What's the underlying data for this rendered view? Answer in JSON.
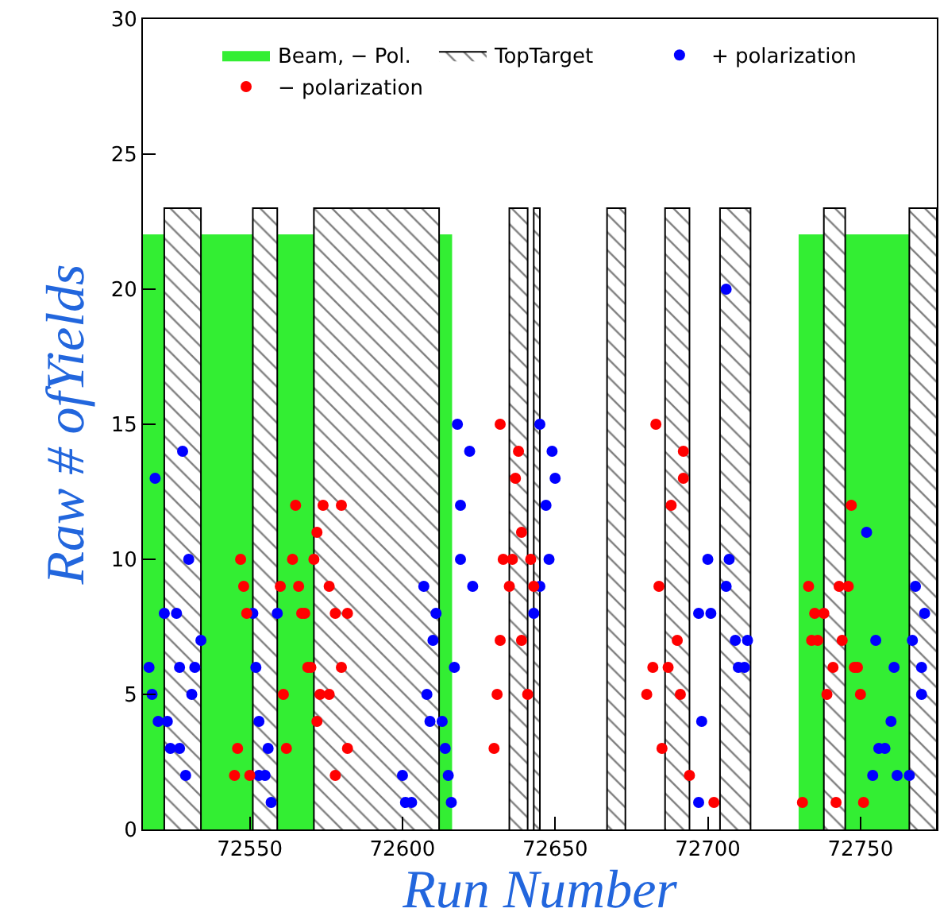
{
  "chart_data": {
    "type": "scatter",
    "xlabel": "Run Number",
    "ylabel": "Raw # ofYields",
    "xlim": [
      72515,
      72775
    ],
    "xticks": [
      72550,
      72600,
      72650,
      72700,
      72750
    ],
    "ylim": [
      0,
      30
    ],
    "yticks": [
      0,
      5,
      10,
      15,
      20,
      25,
      30
    ],
    "grid": false,
    "legend": "top",
    "series": [
      {
        "name": "Beam, − Pol.",
        "type": "area",
        "color": "#33ee33",
        "x": [
          72515,
          72515,
          72616,
          72616,
          null,
          72730,
          72730,
          72775,
          72775
        ],
        "values": [
          0,
          22,
          22,
          0,
          null,
          0,
          22,
          22,
          0
        ]
      },
      {
        "name": "TopTarget",
        "type": "area",
        "color": "#000000",
        "x": [
          72522,
          72522,
          72534,
          72534,
          null,
          72551,
          72551,
          72559,
          72559,
          null,
          72571,
          72571,
          72612,
          72612,
          null,
          72635,
          72635,
          72641,
          72641,
          null,
          72643,
          72643,
          72645,
          72645,
          null,
          72667,
          72667,
          72673,
          72673,
          null,
          72686,
          72686,
          72694,
          72694,
          null,
          72704,
          72704,
          72714,
          72714,
          null,
          72738,
          72738,
          72745,
          72745,
          null,
          72766,
          72766,
          72775,
          72775
        ],
        "values": [
          0,
          23,
          23,
          0,
          null,
          0,
          23,
          23,
          0,
          null,
          0,
          23,
          23,
          0,
          null,
          0,
          23,
          23,
          0,
          null,
          0,
          23,
          23,
          0,
          null,
          0,
          23,
          23,
          0,
          null,
          0,
          23,
          23,
          0,
          null,
          0,
          23,
          23,
          0,
          null,
          0,
          23,
          23,
          0,
          null,
          0,
          23,
          23,
          0
        ]
      },
      {
        "name": "+ polarization",
        "marker": "circle",
        "color": "#0000ff",
        "x": [
          72528,
          72519,
          72530,
          72522,
          72526,
          72534,
          72517,
          72527,
          72532,
          72518,
          72531,
          72520,
          72523,
          72524,
          72527,
          72529,
          72551,
          72559,
          72552,
          72553,
          72556,
          72553,
          72555,
          72557,
          72607,
          72611,
          72610,
          72608,
          72609,
          72613,
          72600,
          72601,
          72603,
          72614,
          72615,
          72616,
          72618,
          72622,
          72619,
          72619,
          72617,
          72623,
          72645,
          72649,
          72650,
          72647,
          72648,
          72645,
          72643,
          72706,
          72700,
          72707,
          72706,
          72697,
          72701,
          72709,
          72713,
          72710,
          72712,
          72698,
          72697,
          72752,
          72768,
          72771,
          72755,
          72767,
          72761,
          72770,
          72770,
          72760,
          72756,
          72758,
          72754,
          72762,
          72766
        ],
        "values": [
          14,
          13,
          10,
          8,
          8,
          7,
          6,
          6,
          6,
          5,
          5,
          4,
          4,
          3,
          3,
          2,
          8,
          8,
          6,
          4,
          3,
          2,
          2,
          1,
          9,
          8,
          7,
          5,
          4,
          4,
          2,
          1,
          1,
          3,
          2,
          1,
          15,
          14,
          12,
          10,
          6,
          9,
          15,
          14,
          13,
          12,
          10,
          9,
          8,
          20,
          10,
          10,
          9,
          8,
          8,
          7,
          7,
          6,
          6,
          4,
          1,
          11,
          9,
          8,
          7,
          7,
          6,
          6,
          5,
          4,
          3,
          3,
          2,
          2,
          2
        ]
      },
      {
        "name": "− polarization",
        "marker": "circle",
        "color": "#ff0000",
        "x": [
          72565,
          72574,
          72580,
          72572,
          72547,
          72564,
          72571,
          72548,
          72560,
          72566,
          72576,
          72549,
          72567,
          72568,
          72578,
          72582,
          72569,
          72570,
          72580,
          72561,
          72573,
          72576,
          72572,
          72546,
          72562,
          72582,
          72545,
          72550,
          72578,
          72632,
          72638,
          72637,
          72639,
          72633,
          72636,
          72642,
          72635,
          72643,
          72632,
          72639,
          72631,
          72641,
          72630,
          72683,
          72692,
          72692,
          72688,
          72684,
          72690,
          72682,
          72687,
          72680,
          72691,
          72685,
          72694,
          72702,
          72747,
          72733,
          72743,
          72746,
          72735,
          72738,
          72734,
          72736,
          72744,
          72741,
          72748,
          72749,
          72739,
          72750,
          72731,
          72742,
          72751
        ],
        "values": [
          12,
          12,
          12,
          11,
          10,
          10,
          10,
          9,
          9,
          9,
          9,
          8,
          8,
          8,
          8,
          8,
          6,
          6,
          6,
          5,
          5,
          5,
          4,
          3,
          3,
          3,
          2,
          2,
          2,
          15,
          14,
          13,
          11,
          10,
          10,
          10,
          9,
          9,
          7,
          7,
          5,
          5,
          3,
          15,
          14,
          13,
          12,
          9,
          7,
          6,
          6,
          5,
          5,
          3,
          2,
          1,
          12,
          9,
          9,
          9,
          8,
          8,
          7,
          7,
          7,
          6,
          6,
          6,
          5,
          5,
          1,
          1,
          1
        ]
      }
    ]
  }
}
